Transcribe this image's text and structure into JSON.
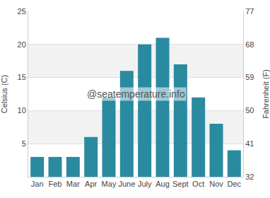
{
  "chart_data": {
    "type": "bar",
    "categories": [
      "Jan",
      "Feb",
      "Mar",
      "Apr",
      "May",
      "June",
      "July",
      "Aug",
      "Sept",
      "Oct",
      "Nov",
      "Dec"
    ],
    "values": [
      3,
      3,
      3,
      6,
      12,
      16,
      20,
      21,
      17,
      12,
      8,
      4
    ],
    "color": "#2a8aa0",
    "ylabel": "Celsius (C)",
    "y2label": "Fahrenheit (F)",
    "ylim": [
      0,
      25
    ],
    "yticks": [
      5,
      10,
      15,
      20,
      25
    ],
    "y2lim": [
      32,
      77
    ],
    "y2ticks": [
      32,
      41,
      50,
      59,
      68,
      77
    ],
    "grid": true,
    "annotations": [
      "@seatemperature.info"
    ]
  }
}
